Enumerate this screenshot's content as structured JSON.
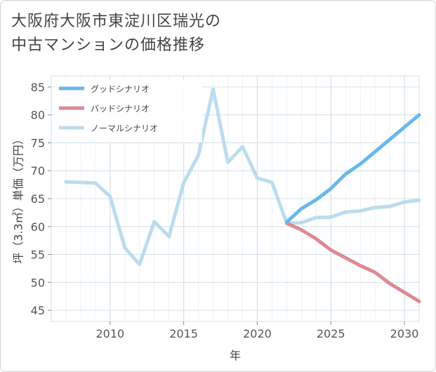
{
  "title": {
    "line1": "大阪府大阪市東淀川区瑞光の",
    "line2": "中古マンションの価格推移"
  },
  "colors": {
    "good": "#6ab8ea",
    "bad": "#dd8a92",
    "normal": "#bcdcec",
    "grid": "#d4e0ea",
    "axis": "#555555"
  },
  "chart_data": {
    "type": "line",
    "xlabel": "年",
    "ylabel": "坪（3.3㎡）単価（万円）",
    "xlim": [
      2006,
      2031
    ],
    "ylim": [
      43,
      87
    ],
    "xticks": [
      2010,
      2015,
      2020,
      2025,
      2030
    ],
    "yticks": [
      45,
      50,
      55,
      60,
      65,
      70,
      75,
      80,
      85
    ],
    "legend_position": "top-left",
    "series": [
      {
        "name": "グッドシナリオ",
        "color_key": "good",
        "x": [
          2022,
          2023,
          2024,
          2025,
          2026,
          2027,
          2028,
          2029,
          2030,
          2031
        ],
        "y": [
          60.8,
          63.2,
          64.8,
          66.8,
          69.4,
          71.2,
          73.4,
          75.6,
          77.8,
          80.0
        ]
      },
      {
        "name": "バッドシナリオ",
        "color_key": "bad",
        "x": [
          2022,
          2023,
          2024,
          2025,
          2026,
          2027,
          2028,
          2029,
          2030,
          2031
        ],
        "y": [
          60.6,
          59.4,
          57.8,
          55.8,
          54.4,
          53.0,
          51.8,
          49.8,
          48.2,
          46.6
        ]
      },
      {
        "name": "ノーマルシナリオ",
        "color_key": "normal",
        "x": [
          2007,
          2008,
          2009,
          2010,
          2011,
          2012,
          2013,
          2014,
          2015,
          2016,
          2017,
          2018,
          2019,
          2020,
          2021,
          2022,
          2023,
          2024,
          2025,
          2026,
          2027,
          2028,
          2029,
          2030,
          2031
        ],
        "y": [
          68.0,
          67.9,
          67.8,
          65.4,
          56.2,
          53.2,
          60.9,
          58.2,
          67.8,
          72.8,
          84.6,
          71.5,
          74.3,
          68.7,
          67.9,
          60.6,
          60.7,
          61.6,
          61.7,
          62.6,
          62.8,
          63.4,
          63.6,
          64.4,
          64.7
        ]
      }
    ]
  }
}
